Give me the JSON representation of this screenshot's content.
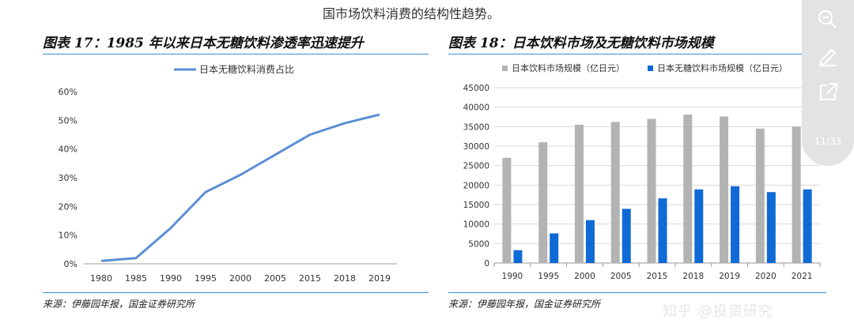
{
  "header": {
    "top_text": "国市场饮料消费的结构性趋势。"
  },
  "left_figure": {
    "title": "图表 17：1985 年以来日本无糖饮料渗透率迅速提升",
    "source": "来源：伊藤园年报，国金证券研究所"
  },
  "right_figure": {
    "title": "图表 18：日本饮料市场及无糖饮料市场规模",
    "source": "来源：伊藤园年报，国金证券研究所"
  },
  "viewer": {
    "page_indicator": "11/33"
  },
  "watermark": "知乎 @投资研究",
  "chart_data": [
    {
      "type": "line",
      "x": [
        "1980",
        "1985",
        "1990",
        "1995",
        "2000",
        "2005",
        "2015",
        "2018",
        "2019"
      ],
      "series": [
        {
          "name": "日本无糖饮料消费占比",
          "values": [
            1,
            2,
            12.5,
            25,
            31,
            38,
            45,
            49,
            52
          ],
          "color": "#5b8fd6"
        }
      ],
      "ylim": [
        0,
        60
      ],
      "yticks": [
        "0%",
        "10%",
        "20%",
        "30%",
        "40%",
        "50%",
        "60%"
      ],
      "legend": "top-center",
      "grid": false
    },
    {
      "type": "bar",
      "categories": [
        "1990",
        "1995",
        "2000",
        "2005",
        "2015",
        "2018",
        "2019",
        "2020",
        "2021"
      ],
      "series": [
        {
          "name": "日本饮料市场规模（亿日元）",
          "values": [
            27000,
            31000,
            35500,
            36200,
            37000,
            38100,
            37600,
            34500,
            35000
          ],
          "color": "#b3b3b3"
        },
        {
          "name": "日本无糖饮料市场规模（亿日元）",
          "values": [
            3300,
            7600,
            11000,
            13900,
            16600,
            18900,
            19700,
            18200,
            18900
          ],
          "color": "#0f6ad6"
        }
      ],
      "ylim": [
        0,
        45000
      ],
      "yticks": [
        "0",
        "5000",
        "10000",
        "15000",
        "20000",
        "25000",
        "30000",
        "35000",
        "40000",
        "45000"
      ],
      "legend": "top-left",
      "grid": true
    }
  ]
}
